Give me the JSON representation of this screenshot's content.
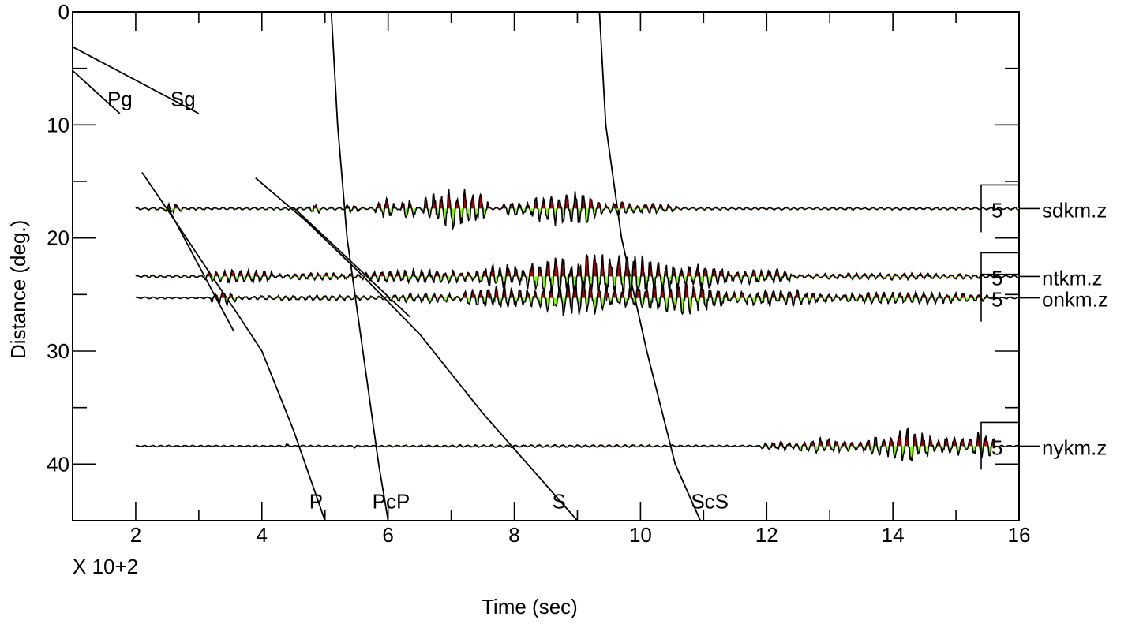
{
  "chart_data": {
    "type": "line",
    "title": "",
    "xlabel": "Time (sec)",
    "ylabel": "Distance (deg.)",
    "x_multiplier_label": "X 10+2",
    "xlim": [
      1,
      16
    ],
    "ylim": [
      0,
      45
    ],
    "y_inverted": true,
    "x_ticks": [
      2,
      4,
      6,
      8,
      10,
      12,
      14,
      16
    ],
    "x_tick_labels": [
      "2",
      "4",
      "6",
      "8",
      "10",
      "12",
      "14",
      "16"
    ],
    "y_ticks": [
      0,
      10,
      20,
      30,
      40
    ],
    "y_tick_labels": [
      "0",
      "10",
      "20",
      "30",
      "40"
    ],
    "fill_colors": {
      "positive": "#b00000",
      "negative": "#7fff00"
    },
    "phases": [
      {
        "name": "Pg",
        "points": [
          [
            1.0,
            5.2
          ],
          [
            1.75,
            9.0
          ]
        ],
        "label_pos": [
          1.55,
          7.7
        ]
      },
      {
        "name": "Sg",
        "points": [
          [
            1.0,
            3.1
          ],
          [
            3.0,
            9.0
          ]
        ],
        "label_pos": [
          2.55,
          7.7
        ]
      },
      {
        "name": "P",
        "points": [
          [
            2.1,
            14.2
          ],
          [
            2.6,
            18.3
          ],
          [
            3.1,
            22.5
          ],
          [
            3.6,
            26.6
          ],
          [
            4.0,
            30.0
          ],
          [
            4.5,
            37.0
          ],
          [
            5.0,
            45.0
          ]
        ],
        "label_pos": [
          4.75,
          43.3
        ]
      },
      {
        "name": "PcP",
        "points": [
          [
            5.1,
            0.0
          ],
          [
            5.2,
            10.0
          ],
          [
            5.35,
            20.0
          ],
          [
            5.6,
            30.0
          ],
          [
            5.85,
            40.0
          ],
          [
            6.0,
            45.0
          ]
        ],
        "label_pos": [
          5.75,
          43.3
        ]
      },
      {
        "name": "S",
        "points": [
          [
            3.9,
            14.7
          ],
          [
            4.7,
            18.5
          ],
          [
            5.5,
            22.8
          ],
          [
            6.5,
            28.5
          ],
          [
            7.5,
            35.5
          ],
          [
            9.0,
            45.0
          ]
        ],
        "label_pos": [
          8.6,
          43.3
        ]
      },
      {
        "name": "ScS",
        "points": [
          [
            9.35,
            0.0
          ],
          [
            9.45,
            10.0
          ],
          [
            9.7,
            20.0
          ],
          [
            10.1,
            30.0
          ],
          [
            10.55,
            40.0
          ],
          [
            10.95,
            45.0
          ]
        ],
        "label_pos": [
          10.8,
          43.3
        ]
      }
    ],
    "secondary_branches": [
      {
        "points": [
          [
            2.5,
            17.2
          ],
          [
            3.55,
            28.2
          ]
        ]
      },
      {
        "points": [
          [
            4.5,
            17.3
          ],
          [
            6.35,
            27.0
          ]
        ]
      }
    ],
    "series": [
      {
        "name": "sdkm.z",
        "distance": 17.4,
        "scale": "5",
        "start": 2.0,
        "noise_amp": 0.12,
        "windows": [
          [
            2.45,
            2.75,
            0.45
          ],
          [
            4.75,
            4.95,
            0.5
          ],
          [
            5.3,
            5.55,
            0.4
          ],
          [
            5.8,
            6.1,
            0.9
          ],
          [
            6.2,
            6.45,
            1.0
          ],
          [
            6.55,
            7.6,
            1.8
          ],
          [
            7.8,
            8.25,
            0.7
          ],
          [
            8.25,
            9.4,
            1.5
          ],
          [
            9.4,
            9.9,
            0.6
          ],
          [
            9.9,
            10.6,
            0.45
          ]
        ]
      },
      {
        "name": "ntkm.z",
        "distance": 23.4,
        "scale": "5",
        "start": 2.0,
        "noise_amp": 0.12,
        "windows": [
          [
            3.1,
            4.2,
            0.65
          ],
          [
            4.2,
            5.6,
            0.35
          ],
          [
            5.6,
            7.4,
            0.6
          ],
          [
            7.4,
            8.2,
            1.1
          ],
          [
            8.2,
            10.6,
            2.0
          ],
          [
            10.6,
            11.4,
            1.2
          ],
          [
            11.4,
            12.4,
            0.7
          ],
          [
            12.4,
            15.5,
            0.3
          ]
        ]
      },
      {
        "name": "onkm.z",
        "distance": 25.3,
        "scale": "5",
        "start": 2.0,
        "noise_amp": 0.08,
        "windows": [
          [
            3.2,
            3.6,
            0.65
          ],
          [
            3.6,
            6.0,
            0.25
          ],
          [
            6.0,
            7.2,
            0.45
          ],
          [
            7.2,
            8.4,
            1.0
          ],
          [
            8.4,
            9.6,
            1.6
          ],
          [
            9.6,
            11.4,
            1.4
          ],
          [
            11.4,
            13.0,
            0.75
          ],
          [
            13.0,
            15.5,
            0.55
          ]
        ]
      },
      {
        "name": "nykm.z",
        "distance": 38.4,
        "scale": "5",
        "start": 2.0,
        "noise_amp": 0.07,
        "windows": [
          [
            4.35,
            4.45,
            0.2
          ],
          [
            5.4,
            5.5,
            0.2
          ],
          [
            5.5,
            11.7,
            0.12
          ],
          [
            11.9,
            12.5,
            0.4
          ],
          [
            12.5,
            13.5,
            0.7
          ],
          [
            13.5,
            13.9,
            0.9
          ],
          [
            13.9,
            14.6,
            1.7
          ],
          [
            14.6,
            15.2,
            0.9
          ],
          [
            15.2,
            15.6,
            1.2
          ]
        ]
      }
    ]
  }
}
